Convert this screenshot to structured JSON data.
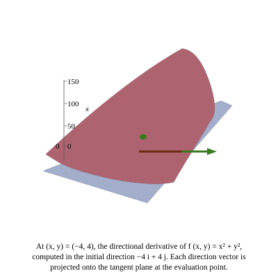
{
  "plot": {
    "axis_ticks": [
      "150",
      "100",
      "50",
      "0",
      "0"
    ],
    "axis_label": "x"
  },
  "caption": {
    "lines": [
      "At (x, y) = (−4, 4), the directional derivative of f (x, y) = x² + y²,",
      "computed in the initial direction −4 i + 4 j.  Each direction vector is",
      "projected onto the tangent plane at the evaluation point."
    ]
  }
}
